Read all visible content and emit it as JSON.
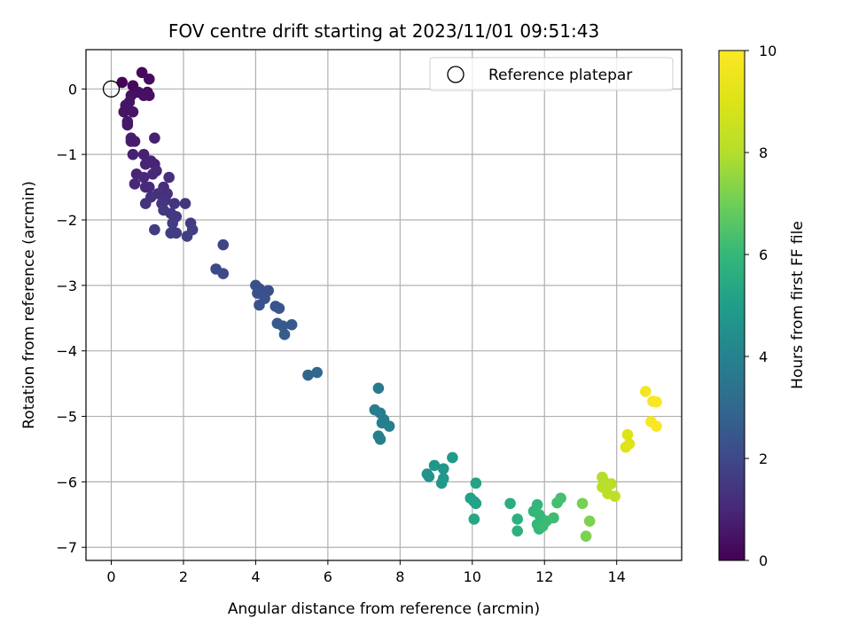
{
  "chart_data": {
    "type": "scatter",
    "title": "FOV centre drift starting at 2023/11/01 09:51:43",
    "xlabel": "Angular distance from reference (arcmin)",
    "ylabel": "Rotation from reference (arcmin)",
    "xlim": [
      -0.7,
      15.8
    ],
    "ylim": [
      -7.2,
      0.6
    ],
    "xticks": [
      "0",
      "2",
      "4",
      "6",
      "8",
      "10",
      "12",
      "14"
    ],
    "yticks": [
      "0",
      "−1",
      "−2",
      "−3",
      "−4",
      "−5",
      "−6",
      "−7"
    ],
    "grid": true,
    "legend": {
      "placement": "top-right",
      "entries": [
        "Reference platepar"
      ]
    },
    "reference_point": {
      "x": 0,
      "y": 0
    },
    "colorbar": {
      "label": "Hours from first FF file",
      "range": [
        0,
        10
      ],
      "ticks": [
        "0",
        "2",
        "4",
        "6",
        "8",
        "10"
      ],
      "colormap": "viridis"
    },
    "points": [
      {
        "x": 0.3,
        "y": 0.1,
        "h": 0.1
      },
      {
        "x": 0.6,
        "y": 0.05,
        "h": 0.2
      },
      {
        "x": 0.85,
        "y": 0.25,
        "h": 0.2
      },
      {
        "x": 1.05,
        "y": 0.15,
        "h": 0.3
      },
      {
        "x": 1.0,
        "y": -0.05,
        "h": 0.3
      },
      {
        "x": 0.75,
        "y": -0.05,
        "h": 0.3
      },
      {
        "x": 0.55,
        "y": -0.1,
        "h": 0.4
      },
      {
        "x": 0.9,
        "y": -0.1,
        "h": 0.4
      },
      {
        "x": 1.05,
        "y": -0.1,
        "h": 0.4
      },
      {
        "x": 0.5,
        "y": -0.2,
        "h": 0.5
      },
      {
        "x": 0.4,
        "y": -0.25,
        "h": 0.5
      },
      {
        "x": 0.6,
        "y": -0.35,
        "h": 0.5
      },
      {
        "x": 0.35,
        "y": -0.35,
        "h": 0.5
      },
      {
        "x": 0.45,
        "y": -0.5,
        "h": 0.6
      },
      {
        "x": 0.45,
        "y": -0.55,
        "h": 0.6
      },
      {
        "x": 0.55,
        "y": -0.75,
        "h": 0.7
      },
      {
        "x": 0.65,
        "y": -0.8,
        "h": 0.7
      },
      {
        "x": 0.55,
        "y": -0.8,
        "h": 0.7
      },
      {
        "x": 1.2,
        "y": -0.75,
        "h": 0.8
      },
      {
        "x": 0.6,
        "y": -1.0,
        "h": 0.8
      },
      {
        "x": 0.9,
        "y": -1.0,
        "h": 0.8
      },
      {
        "x": 1.1,
        "y": -1.1,
        "h": 0.9
      },
      {
        "x": 0.95,
        "y": -1.15,
        "h": 0.9
      },
      {
        "x": 1.2,
        "y": -1.15,
        "h": 0.9
      },
      {
        "x": 0.7,
        "y": -1.3,
        "h": 0.9
      },
      {
        "x": 0.9,
        "y": -1.35,
        "h": 1.0
      },
      {
        "x": 1.15,
        "y": -1.3,
        "h": 1.0
      },
      {
        "x": 1.25,
        "y": -1.25,
        "h": 1.0
      },
      {
        "x": 0.65,
        "y": -1.45,
        "h": 1.0
      },
      {
        "x": 0.95,
        "y": -1.5,
        "h": 1.1
      },
      {
        "x": 1.05,
        "y": -1.5,
        "h": 1.1
      },
      {
        "x": 1.6,
        "y": -1.35,
        "h": 1.2
      },
      {
        "x": 1.45,
        "y": -1.5,
        "h": 1.2
      },
      {
        "x": 1.55,
        "y": -1.6,
        "h": 1.2
      },
      {
        "x": 1.3,
        "y": -1.6,
        "h": 1.3
      },
      {
        "x": 1.1,
        "y": -1.65,
        "h": 1.3
      },
      {
        "x": 1.5,
        "y": -1.7,
        "h": 1.3
      },
      {
        "x": 0.95,
        "y": -1.75,
        "h": 1.3
      },
      {
        "x": 1.4,
        "y": -1.75,
        "h": 1.4
      },
      {
        "x": 1.75,
        "y": -1.75,
        "h": 1.4
      },
      {
        "x": 2.05,
        "y": -1.75,
        "h": 1.4
      },
      {
        "x": 1.45,
        "y": -1.85,
        "h": 1.5
      },
      {
        "x": 1.65,
        "y": -1.9,
        "h": 1.5
      },
      {
        "x": 1.8,
        "y": -1.95,
        "h": 1.5
      },
      {
        "x": 1.7,
        "y": -2.05,
        "h": 1.6
      },
      {
        "x": 2.2,
        "y": -2.05,
        "h": 1.6
      },
      {
        "x": 1.2,
        "y": -2.15,
        "h": 1.6
      },
      {
        "x": 1.8,
        "y": -2.2,
        "h": 1.6
      },
      {
        "x": 2.25,
        "y": -2.15,
        "h": 1.7
      },
      {
        "x": 1.65,
        "y": -2.2,
        "h": 1.7
      },
      {
        "x": 2.1,
        "y": -2.25,
        "h": 1.7
      },
      {
        "x": 3.1,
        "y": -2.38,
        "h": 1.9
      },
      {
        "x": 2.9,
        "y": -2.75,
        "h": 2.0
      },
      {
        "x": 3.1,
        "y": -2.82,
        "h": 2.0
      },
      {
        "x": 4.0,
        "y": -3.0,
        "h": 2.2
      },
      {
        "x": 4.1,
        "y": -3.05,
        "h": 2.2
      },
      {
        "x": 4.35,
        "y": -3.08,
        "h": 2.2
      },
      {
        "x": 4.05,
        "y": -3.12,
        "h": 2.3
      },
      {
        "x": 4.25,
        "y": -3.2,
        "h": 2.3
      },
      {
        "x": 4.1,
        "y": -3.3,
        "h": 2.3
      },
      {
        "x": 4.55,
        "y": -3.32,
        "h": 2.4
      },
      {
        "x": 4.65,
        "y": -3.35,
        "h": 2.4
      },
      {
        "x": 4.6,
        "y": -3.58,
        "h": 2.5
      },
      {
        "x": 4.75,
        "y": -3.62,
        "h": 2.5
      },
      {
        "x": 5.0,
        "y": -3.6,
        "h": 2.5
      },
      {
        "x": 4.8,
        "y": -3.75,
        "h": 2.6
      },
      {
        "x": 5.45,
        "y": -4.37,
        "h": 2.9
      },
      {
        "x": 5.7,
        "y": -4.33,
        "h": 3.0
      },
      {
        "x": 7.4,
        "y": -4.57,
        "h": 3.7
      },
      {
        "x": 7.3,
        "y": -4.9,
        "h": 3.8
      },
      {
        "x": 7.45,
        "y": -4.95,
        "h": 3.8
      },
      {
        "x": 7.5,
        "y": -5.1,
        "h": 3.8
      },
      {
        "x": 7.7,
        "y": -5.15,
        "h": 3.9
      },
      {
        "x": 7.55,
        "y": -5.05,
        "h": 3.9
      },
      {
        "x": 7.4,
        "y": -5.3,
        "h": 3.9
      },
      {
        "x": 7.45,
        "y": -5.35,
        "h": 3.9
      },
      {
        "x": 8.75,
        "y": -5.88,
        "h": 4.6
      },
      {
        "x": 8.8,
        "y": -5.92,
        "h": 4.6
      },
      {
        "x": 8.95,
        "y": -5.75,
        "h": 4.7
      },
      {
        "x": 9.2,
        "y": -5.8,
        "h": 4.7
      },
      {
        "x": 9.2,
        "y": -5.95,
        "h": 4.8
      },
      {
        "x": 9.15,
        "y": -6.02,
        "h": 4.8
      },
      {
        "x": 9.45,
        "y": -5.63,
        "h": 4.9
      },
      {
        "x": 9.95,
        "y": -6.25,
        "h": 5.1
      },
      {
        "x": 10.05,
        "y": -6.3,
        "h": 5.1
      },
      {
        "x": 10.1,
        "y": -6.02,
        "h": 5.2
      },
      {
        "x": 10.1,
        "y": -6.33,
        "h": 5.2
      },
      {
        "x": 10.05,
        "y": -6.57,
        "h": 5.3
      },
      {
        "x": 11.05,
        "y": -6.33,
        "h": 5.6
      },
      {
        "x": 11.25,
        "y": -6.57,
        "h": 5.7
      },
      {
        "x": 11.25,
        "y": -6.75,
        "h": 5.7
      },
      {
        "x": 11.7,
        "y": -6.45,
        "h": 5.9
      },
      {
        "x": 11.8,
        "y": -6.35,
        "h": 5.9
      },
      {
        "x": 11.85,
        "y": -6.5,
        "h": 6.0
      },
      {
        "x": 11.9,
        "y": -6.55,
        "h": 6.0
      },
      {
        "x": 11.8,
        "y": -6.65,
        "h": 6.0
      },
      {
        "x": 11.85,
        "y": -6.72,
        "h": 6.0
      },
      {
        "x": 11.95,
        "y": -6.68,
        "h": 6.1
      },
      {
        "x": 12.05,
        "y": -6.6,
        "h": 6.1
      },
      {
        "x": 12.25,
        "y": -6.55,
        "h": 6.2
      },
      {
        "x": 12.35,
        "y": -6.32,
        "h": 6.3
      },
      {
        "x": 12.45,
        "y": -6.25,
        "h": 6.3
      },
      {
        "x": 13.05,
        "y": -6.33,
        "h": 7.1
      },
      {
        "x": 13.25,
        "y": -6.6,
        "h": 7.2
      },
      {
        "x": 13.15,
        "y": -6.83,
        "h": 7.2
      },
      {
        "x": 13.6,
        "y": -5.93,
        "h": 8.0
      },
      {
        "x": 13.65,
        "y": -6.0,
        "h": 8.0
      },
      {
        "x": 13.6,
        "y": -6.08,
        "h": 8.1
      },
      {
        "x": 13.85,
        "y": -6.03,
        "h": 8.1
      },
      {
        "x": 13.75,
        "y": -6.18,
        "h": 8.2
      },
      {
        "x": 13.95,
        "y": -6.22,
        "h": 8.2
      },
      {
        "x": 14.3,
        "y": -5.28,
        "h": 9.0
      },
      {
        "x": 14.35,
        "y": -5.42,
        "h": 9.0
      },
      {
        "x": 14.25,
        "y": -5.47,
        "h": 9.1
      },
      {
        "x": 14.8,
        "y": -4.62,
        "h": 9.7
      },
      {
        "x": 15.0,
        "y": -4.77,
        "h": 9.8
      },
      {
        "x": 15.1,
        "y": -4.78,
        "h": 9.9
      },
      {
        "x": 14.95,
        "y": -5.08,
        "h": 9.8
      },
      {
        "x": 15.1,
        "y": -5.15,
        "h": 9.9
      }
    ]
  }
}
